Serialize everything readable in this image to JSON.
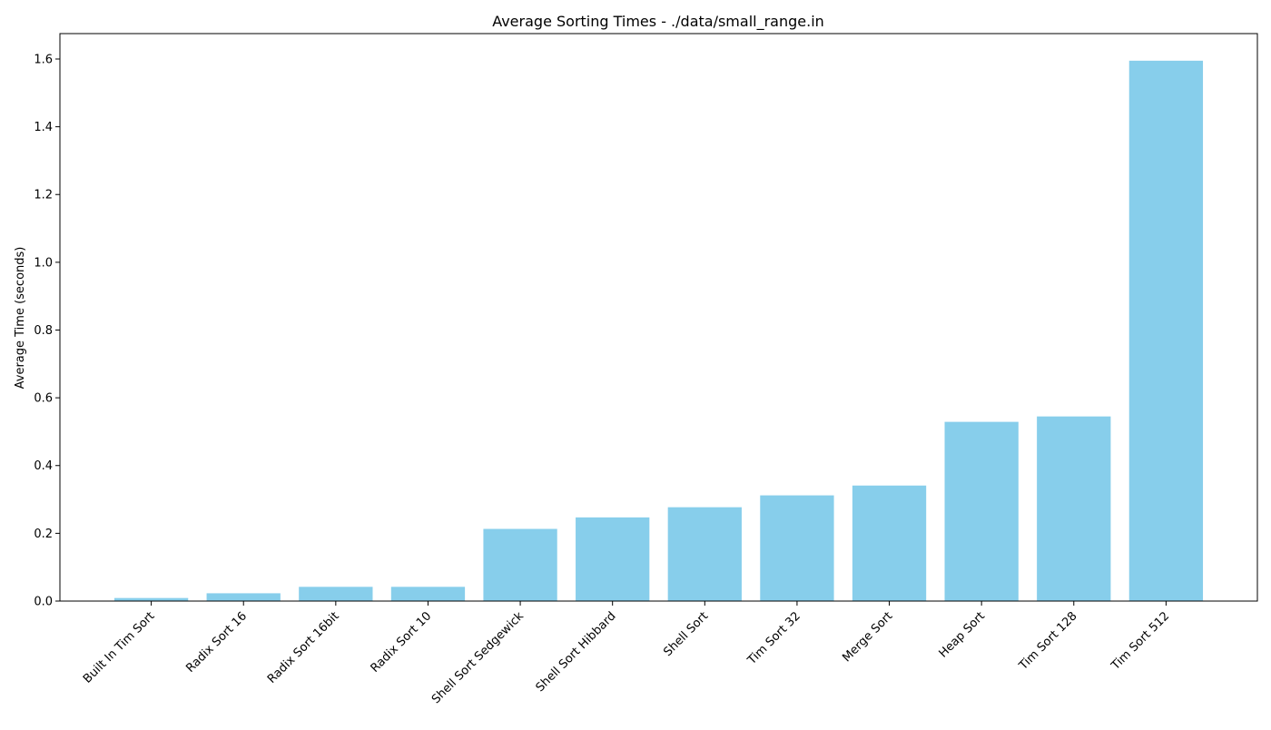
{
  "chart_data": {
    "type": "bar",
    "title": "Average Sorting Times - ./data/small_range.in",
    "xlabel": "",
    "ylabel": "Average Time (seconds)",
    "ylim": [
      0,
      1.675
    ],
    "yticks": [
      0.0,
      0.2,
      0.4,
      0.6,
      0.8,
      1.0,
      1.2,
      1.4,
      1.6
    ],
    "ytick_labels": [
      "0.0",
      "0.2",
      "0.4",
      "0.6",
      "0.8",
      "1.0",
      "1.2",
      "1.4",
      "1.6"
    ],
    "categories": [
      "Built In Tim Sort",
      "Radix Sort 16",
      "Radix Sort 16bit",
      "Radix Sort 10",
      "Shell Sort Sedgewick",
      "Shell Sort Hibbard",
      "Shell Sort",
      "Tim Sort 32",
      "Merge Sort",
      "Heap Sort",
      "Tim Sort 128",
      "Tim Sort 512"
    ],
    "values": [
      0.009,
      0.023,
      0.042,
      0.042,
      0.213,
      0.247,
      0.277,
      0.312,
      0.341,
      0.529,
      0.545,
      1.595
    ],
    "bar_color": "#87ceeb",
    "grid": false,
    "legend": "none"
  }
}
